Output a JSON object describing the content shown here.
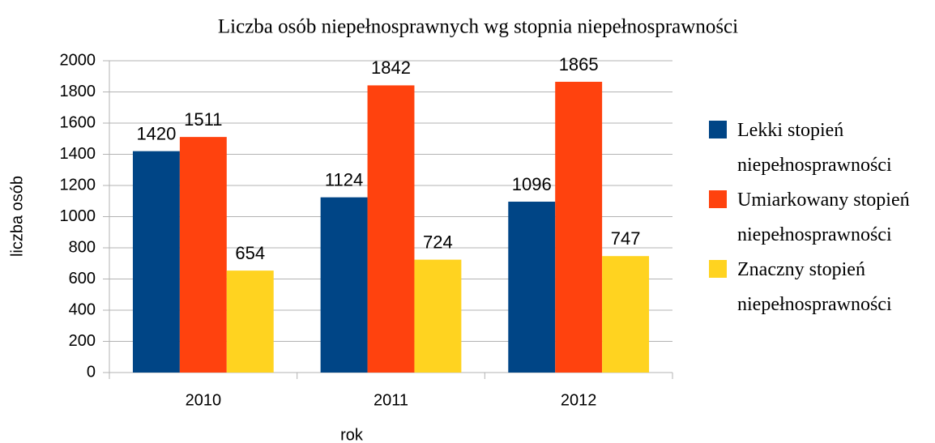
{
  "chart_data": {
    "type": "bar",
    "title": "Liczba osób niepełnosprawnych wg stopnia niepełnosprawności",
    "x_label": "rok",
    "y_label": "liczba osób",
    "categories": [
      "2010",
      "2011",
      "2012"
    ],
    "series": [
      {
        "name": "Lekki stopień niepełnosprawności",
        "color": "#004586",
        "values": [
          1420,
          1124,
          1096
        ]
      },
      {
        "name": "Umiarkowany stopień niepełnosprawności",
        "color": "#ff420e",
        "values": [
          1511,
          1842,
          1865
        ]
      },
      {
        "name": "Znaczny stopień niepełnosprawności",
        "color": "#ffd320",
        "values": [
          654,
          724,
          747
        ]
      }
    ],
    "ylim": [
      0,
      2000
    ],
    "yticks": [
      0,
      200,
      400,
      600,
      800,
      1000,
      1200,
      1400,
      1600,
      1800,
      2000
    ],
    "grid": true,
    "legend": "right"
  }
}
